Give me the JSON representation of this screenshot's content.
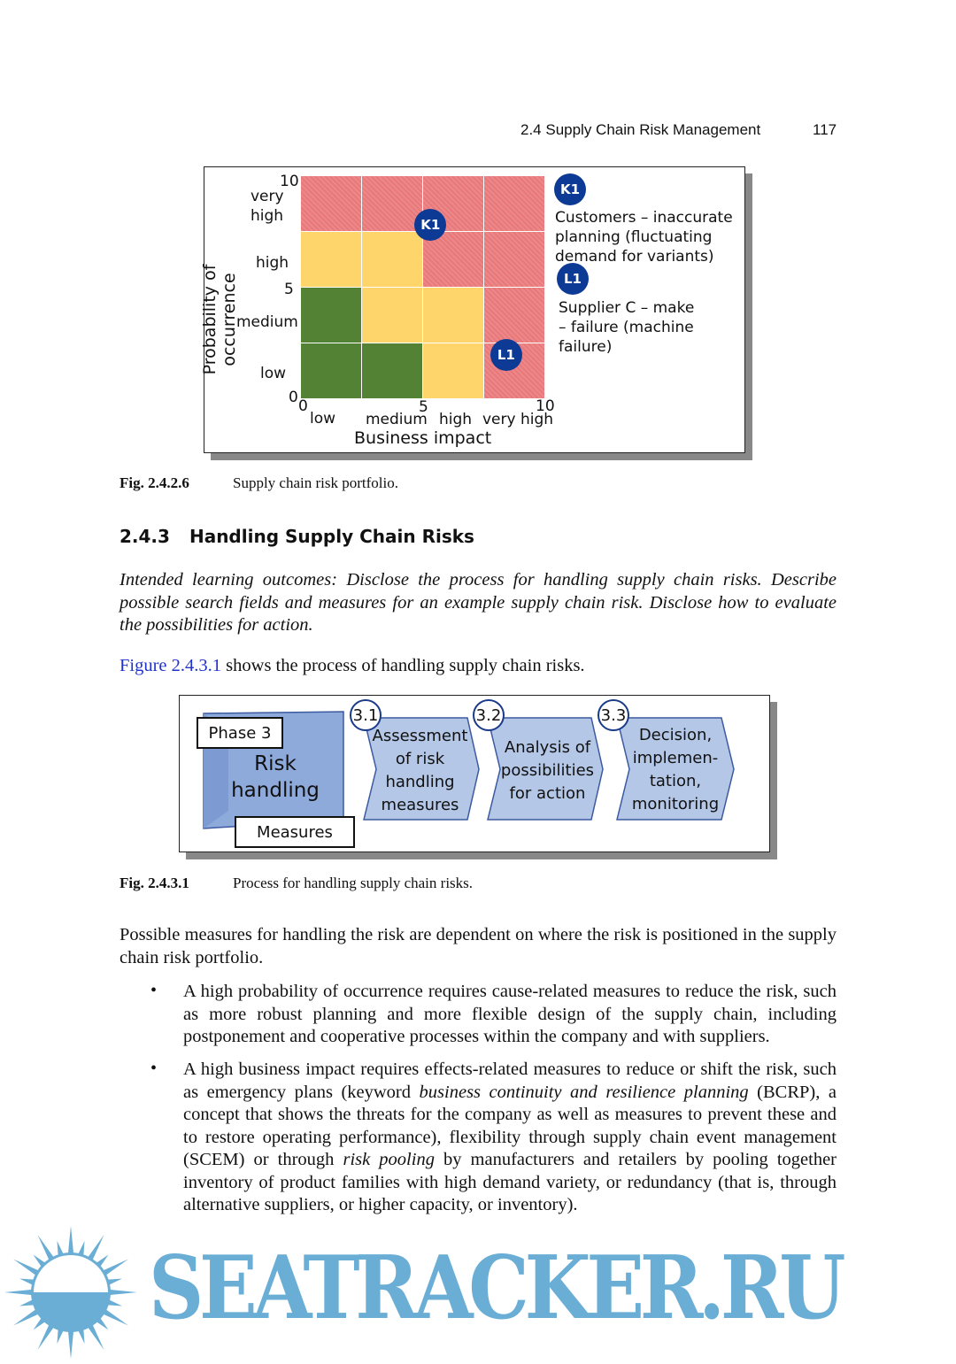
{
  "header": {
    "section": "2.4  Supply Chain Risk Management",
    "page": "117"
  },
  "fig1": {
    "ylabel": "Probability of occurrence",
    "xlabel": "Business impact",
    "yticks": [
      "0",
      "5",
      "10"
    ],
    "xticks": [
      "0",
      "5",
      "10"
    ],
    "ycats": [
      "very high",
      "high",
      "medium",
      "low"
    ],
    "xcats": [
      "low",
      "medium",
      "high",
      "very high"
    ],
    "grid": [
      [
        "red",
        "red",
        "red",
        "red"
      ],
      [
        "yellow",
        "yellow",
        "red",
        "red"
      ],
      [
        "green",
        "yellow",
        "yellow",
        "red"
      ],
      [
        "green",
        "green",
        "yellow",
        "red"
      ]
    ],
    "colors": {
      "red": "#e9787a",
      "yellow": "#fdd56a",
      "green": "#548235",
      "badge": "#0d3a94"
    },
    "badges": [
      {
        "label": "K1",
        "impact": 5.3,
        "probability": 7.8
      },
      {
        "label": "L1",
        "impact": 8.4,
        "probability": 2.0
      }
    ],
    "legend": [
      {
        "label": "K1",
        "text": "Customers – inaccurate planning (fluctuating demand for variants)"
      },
      {
        "label": "L1",
        "text": "Supplier C – make –  failure (machine failure)"
      }
    ],
    "caption_num": "Fig. 2.4.2.6",
    "caption": "Supply chain risk portfolio."
  },
  "section": {
    "number": "2.4.3",
    "title": "Handling Supply Chain Risks"
  },
  "outcomes": "Intended learning outcomes: Disclose the process for handling supply chain risks. Describe possible search fields and measures for an example supply chain risk. Disclose how to evaluate the possibilities for action.",
  "ref": {
    "link": "Figure 2.4.3.1",
    "rest": " shows the process of handling supply chain risks."
  },
  "fig2": {
    "phase": "Phase 3",
    "main": "Risk handling",
    "measures": "Measures",
    "steps": [
      {
        "num": "3.1",
        "text": "Assessment of risk handling measures"
      },
      {
        "num": "3.2",
        "text": "Analysis of possibilities for action"
      },
      {
        "num": "3.3",
        "text": "Decision, implemen-tation, monitoring"
      }
    ],
    "caption_num": "Fig. 2.4.3.1",
    "caption": "Process for handling supply chain risks."
  },
  "body": {
    "intro": "Possible measures for handling the risk are dependent on where the risk is positioned in the supply chain risk portfolio.",
    "bullet1": "A high probability of occurrence requires cause-related measures to reduce the risk, such as more robust planning and more flexible design of the supply chain, including postponement and cooperative processes within the company and with suppliers.",
    "bullet2": {
      "a": "A high business impact requires effects-related measures to reduce or shift the risk, such as emergency plans (keyword ",
      "b": "business continuity and resilience planning",
      "c": " (BCRP), a concept that shows the threats for the company as well as measures to prevent these and to restore operating performance), flexibility through supply chain event management (SCEM) or through ",
      "d": "risk pooling",
      "e": " by manufacturers and retailers by pooling together inventory of product families with high demand variety, or redundancy (that is, through alternative suppliers, or higher capacity, or inventory)."
    },
    "bullet_char": "•"
  },
  "watermark": {
    "text": "SEATRACKER.RU",
    "color": "#6aaed6"
  }
}
